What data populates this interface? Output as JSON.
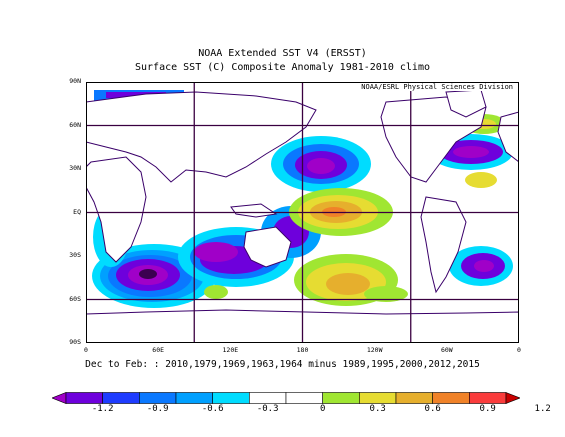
{
  "title": {
    "line1": "NOAA Extended SST V4 (ERSST)",
    "line2": "Surface SST (C) Composite Anomaly 1981-2010 climo"
  },
  "map": {
    "credit": "NOAA/ESRL Physical Sciences Division",
    "lat_labels": [
      "90N",
      "60N",
      "30N",
      "EQ",
      "30S",
      "60S",
      "90S"
    ],
    "lon_labels": [
      "0",
      "60E",
      "120E",
      "180",
      "120W",
      "60W",
      "0"
    ],
    "grid": true
  },
  "footer": "Dec to Feb: : 2010,1979,1969,1963,1964 minus 1989,1995,2000,2012,2015",
  "colorbar": {
    "ticks": [
      "-1.2",
      "-0.9",
      "-0.6",
      "-0.3",
      "0",
      "0.3",
      "0.6",
      "0.9",
      "1.2"
    ],
    "colors": [
      "#a000c8",
      "#6e00dc",
      "#1e3cff",
      "#0a78ff",
      "#00a0ff",
      "#00dcff",
      "#ffffff",
      "#ffffff",
      "#a0e632",
      "#e6dc32",
      "#e6af2d",
      "#f08228",
      "#fa3c3c",
      "#c80000"
    ]
  }
}
